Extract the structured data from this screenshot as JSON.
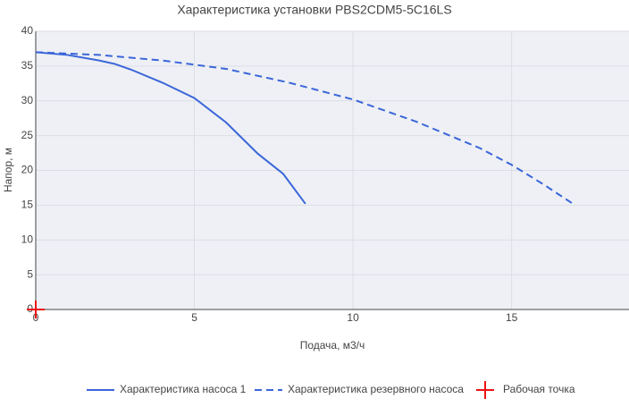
{
  "chart_data": {
    "type": "line",
    "title": "Характеристика установки PBS2CDM5-5C16LS",
    "x_label": "Подача, м3/ч",
    "y_label": "Напор, м",
    "xlim": [
      0,
      18.7
    ],
    "xticks": [
      0,
      5,
      10,
      15
    ],
    "ylim": [
      0,
      40
    ],
    "yticks": [
      0,
      5,
      10,
      15,
      20,
      25,
      30,
      35,
      40
    ],
    "grid": true,
    "legend": "bottom",
    "series": [
      {
        "name": "Характеристика насоса 1",
        "color": "#3b66d9",
        "dash": false,
        "marker": false,
        "x": [
          0,
          1,
          2,
          2.5,
          3,
          4,
          5,
          6,
          7,
          7.8,
          8.5
        ],
        "values": [
          37,
          36.6,
          35.8,
          35.3,
          34.5,
          32.6,
          30.4,
          26.9,
          22.4,
          19.5,
          15.2
        ]
      },
      {
        "name": "Характеристика резервного насоса",
        "color": "#3b66d9",
        "dash": true,
        "marker": false,
        "x": [
          0,
          2,
          4,
          6,
          8,
          10,
          12,
          14,
          15,
          16,
          17
        ],
        "values": [
          37,
          36.6,
          35.8,
          34.6,
          32.6,
          30.2,
          27,
          23.2,
          20.8,
          18,
          15
        ]
      },
      {
        "name": "Рабочая точка",
        "color": "#ee1111",
        "dash": false,
        "marker": true,
        "x": [
          0
        ],
        "values": [
          0
        ]
      }
    ]
  }
}
